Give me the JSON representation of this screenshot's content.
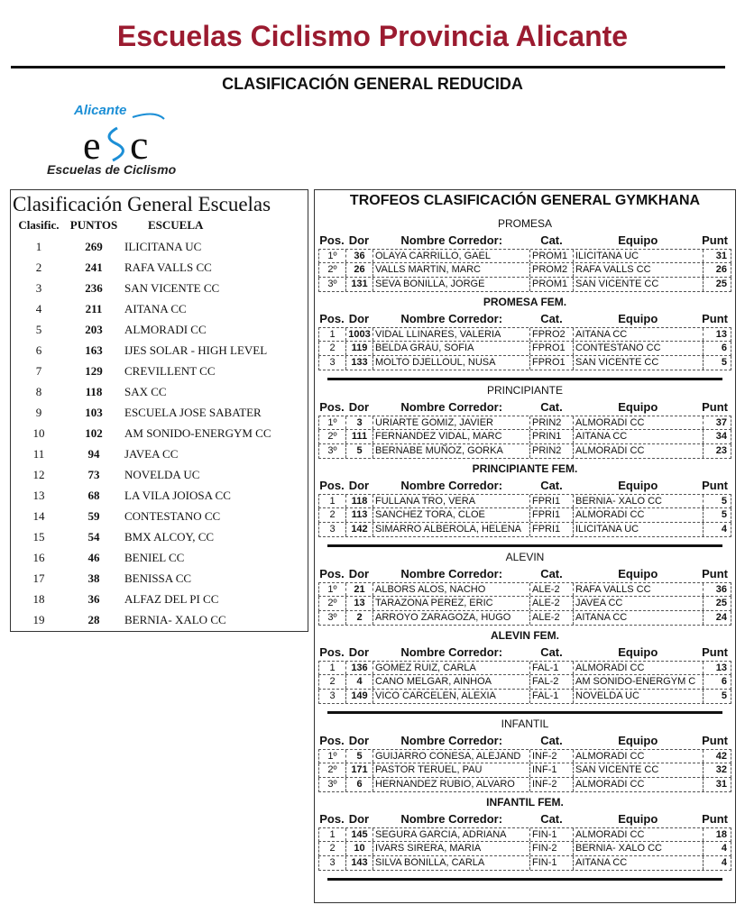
{
  "title": "Escuelas Ciclismo Provincia Alicante",
  "subtitle": "CLASIFICACIÓN GENERAL REDUCIDA",
  "logo": {
    "top": "Alicante",
    "bottom": "Escuelas de Ciclismo",
    "mark": "ESC"
  },
  "colors": {
    "title": "#9b1b30",
    "logo_blue": "#1c8fd6"
  },
  "schools": {
    "title": "Clasificación  General Escuelas",
    "headers": [
      "Clasific.",
      "PUNTOS",
      "ESCUELA"
    ],
    "rows": [
      [
        "1",
        "269",
        "ILICITANA UC"
      ],
      [
        "2",
        "241",
        "RAFA VALLS CC"
      ],
      [
        "3",
        "236",
        "SAN VICENTE CC"
      ],
      [
        "4",
        "211",
        "AITANA CC"
      ],
      [
        "5",
        "203",
        "ALMORADI CC"
      ],
      [
        "6",
        "163",
        "IJES SOLAR - HIGH LEVEL"
      ],
      [
        "7",
        "129",
        "CREVILLENT CC"
      ],
      [
        "8",
        "118",
        "SAX CC"
      ],
      [
        "9",
        "103",
        "ESCUELA JOSE SABATER"
      ],
      [
        "10",
        "102",
        "AM SONIDO-ENERGYM CC"
      ],
      [
        "11",
        "94",
        "JAVEA CC"
      ],
      [
        "12",
        "73",
        "NOVELDA UC"
      ],
      [
        "13",
        "68",
        "LA VILA JOIOSA CC"
      ],
      [
        "14",
        "59",
        "CONTESTANO CC"
      ],
      [
        "15",
        "54",
        "BMX ALCOY, CC"
      ],
      [
        "16",
        "46",
        "BENIEL CC"
      ],
      [
        "17",
        "38",
        "BENISSA CC"
      ],
      [
        "18",
        "36",
        "ALFAZ DEL PI CC"
      ],
      [
        "19",
        "28",
        "BERNIA- XALO CC"
      ]
    ]
  },
  "trophies": {
    "title": "TROFEOS CLASIFICACIÓN GENERAL GYMKHANA",
    "headers": [
      "Pos.",
      "Dor",
      "Nombre Corredor:",
      "Cat.",
      "Equipo",
      "Punt"
    ],
    "sections": [
      {
        "name": "PROMESA",
        "bold": false,
        "rows": [
          [
            "1º",
            "36",
            "OLAYA CARRILLO, GAEL",
            "PROM1",
            "ILICITANA UC",
            "31"
          ],
          [
            "2º",
            "26",
            "VALLS MARTIN, MARC",
            "PROM2",
            "RAFA VALLS CC",
            "26"
          ],
          [
            "3º",
            "131",
            "SEVA BONILLA, JORGE",
            "PROM1",
            "SAN VICENTE CC",
            "25"
          ]
        ]
      },
      {
        "name": "PROMESA FEM.",
        "bold": true,
        "rows": [
          [
            "1",
            "1003",
            "VIDAL LLINARES, VALERIA",
            "FPRO2",
            "AITANA CC",
            "13"
          ],
          [
            "2",
            "119",
            "BELDA GRAU, SOFIA",
            "FPRO1",
            "CONTESTANO CC",
            "6"
          ],
          [
            "3",
            "133",
            "MOLTO DJELLOUL, NUSA",
            "FPRO1",
            "SAN VICENTE CC",
            "5"
          ]
        ]
      },
      {
        "name": "PRINCIPIANTE",
        "bold": false,
        "rows": [
          [
            "1º",
            "3",
            "URIARTE GOMIZ, JAVIER",
            "PRIN2",
            "ALMORADI CC",
            "37"
          ],
          [
            "2º",
            "111",
            "FERNANDEZ VIDAL, MARC",
            "PRIN1",
            "AITANA CC",
            "34"
          ],
          [
            "3º",
            "5",
            "BERNABE MUÑOZ, GORKA",
            "PRIN2",
            "ALMORADI CC",
            "23"
          ]
        ]
      },
      {
        "name": "PRINCIPIANTE FEM.",
        "bold": true,
        "rows": [
          [
            "1",
            "118",
            "FULLANA TRO, VERA",
            "FPRI1",
            "BERNIA- XALO CC",
            "5"
          ],
          [
            "2",
            "113",
            "SANCHEZ TORA, CLOE",
            "FPRI1",
            "ALMORADI CC",
            "5"
          ],
          [
            "3",
            "142",
            "SIMARRO ALBEROLA, HELENA",
            "FPRI1",
            "ILICITANA UC",
            "4"
          ]
        ]
      },
      {
        "name": "ALEVIN",
        "bold": false,
        "rows": [
          [
            "1º",
            "21",
            "ALBORS ALOS, NACHO",
            "ALE-2",
            "RAFA VALLS CC",
            "36"
          ],
          [
            "2º",
            "13",
            "TARAZONA PEREZ, ERIC",
            "ALE-2",
            "JAVEA CC",
            "25"
          ],
          [
            "3º",
            "2",
            "ARROYO ZARAGOZA, HUGO",
            "ALE-2",
            "AITANA CC",
            "24"
          ]
        ]
      },
      {
        "name": "ALEVIN FEM.",
        "bold": true,
        "rows": [
          [
            "1",
            "136",
            "GOMEZ RUIZ, CARLA",
            "FAL-1",
            "ALMORADI CC",
            "13"
          ],
          [
            "2",
            "4",
            "CANO MELGAR, AINHOA",
            "FAL-2",
            "AM SONIDO-ENERGYM C",
            "6"
          ],
          [
            "3",
            "149",
            "VICO CARCELEN, ALEXIA",
            "FAL-1",
            "NOVELDA UC",
            "5"
          ]
        ]
      },
      {
        "name": "INFANTIL",
        "bold": false,
        "rows": [
          [
            "1º",
            "5",
            "GUIJARRO CONESA, ALEJAND",
            "INF-2",
            "ALMORADI CC",
            "42"
          ],
          [
            "2º",
            "171",
            "PASTOR TERUEL, PAU",
            "INF-1",
            "SAN VICENTE CC",
            "32"
          ],
          [
            "3º",
            "6",
            "HERNANDEZ RUBIO, ALVARO",
            "INF-2",
            "ALMORADI CC",
            "31"
          ]
        ]
      },
      {
        "name": "INFANTIL FEM.",
        "bold": true,
        "rows": [
          [
            "1",
            "145",
            "SEGURA GARCIA, ADRIANA",
            "FIN-1",
            "ALMORADI CC",
            "18"
          ],
          [
            "2",
            "10",
            "IVARS SIRERA, MARIA",
            "FIN-2",
            "BERNIA- XALO CC",
            "4"
          ],
          [
            "3",
            "143",
            "SILVA BONILLA, CARLA",
            "FIN-1",
            "AITANA CC",
            "4"
          ]
        ]
      }
    ]
  }
}
